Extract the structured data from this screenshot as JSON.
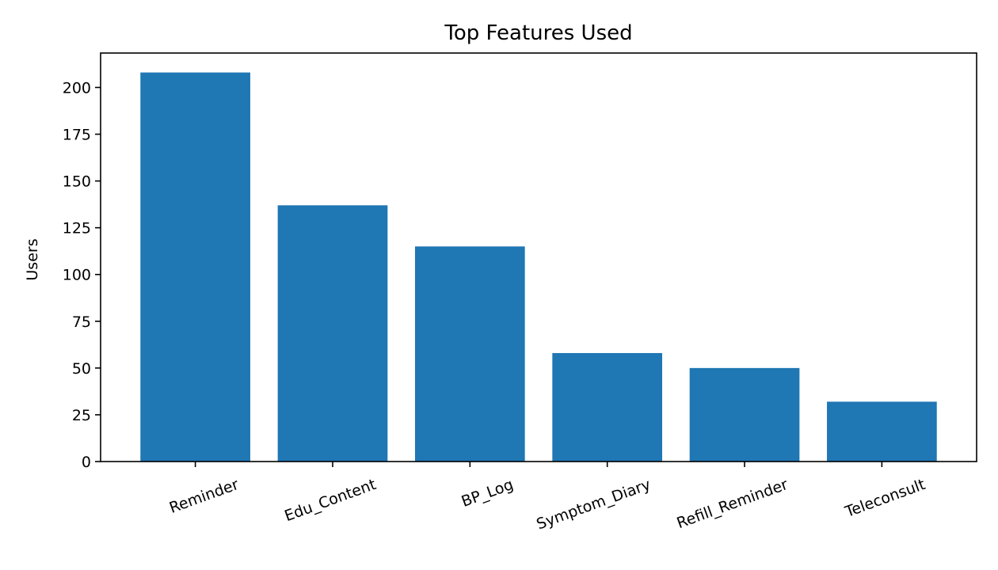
{
  "chart_data": {
    "type": "bar",
    "title": "Top Features Used",
    "xlabel": "",
    "ylabel": "Users",
    "categories": [
      "Reminder",
      "Edu_Content",
      "BP_Log",
      "Symptom_Diary",
      "Refill_Reminder",
      "Teleconsult"
    ],
    "values": [
      208,
      137,
      115,
      58,
      50,
      32
    ],
    "ylim": [
      0,
      218.4
    ],
    "yticks": [
      0,
      25,
      50,
      75,
      100,
      125,
      150,
      175,
      200
    ],
    "bar_color": "#1f77b4",
    "x_tick_rotation": -20,
    "grid": false,
    "legend": "none"
  }
}
